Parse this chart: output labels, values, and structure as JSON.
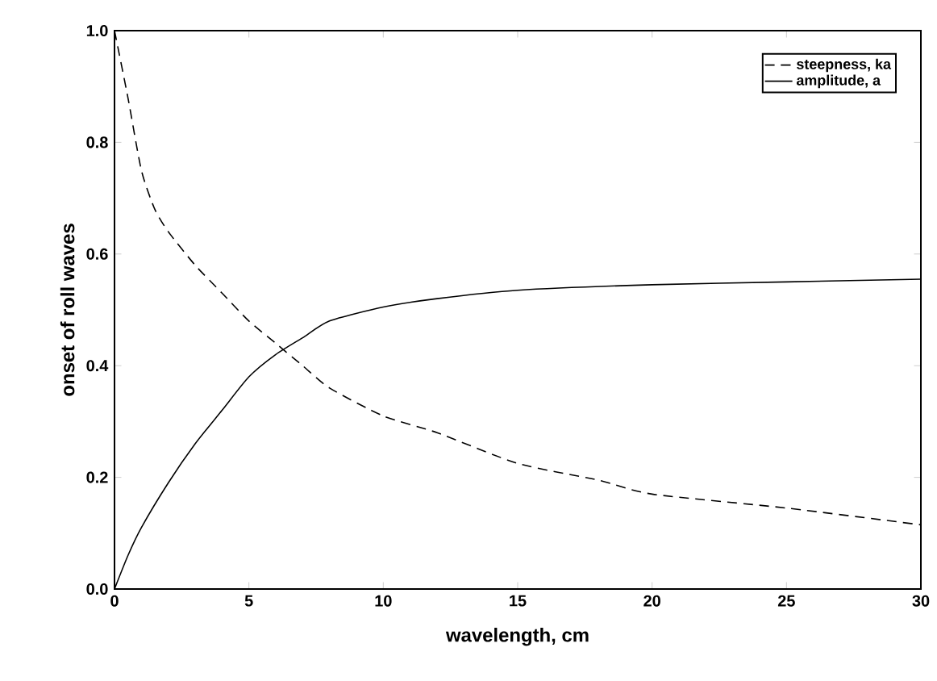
{
  "chart_data": {
    "type": "line",
    "xlabel": "wavelength, cm",
    "ylabel": "onset of roll waves",
    "xlim": [
      0,
      30
    ],
    "ylim": [
      0,
      1
    ],
    "xticks": [
      0,
      5,
      10,
      15,
      20,
      25,
      30
    ],
    "yticks": [
      {
        "value": 0,
        "label": "0.0"
      },
      {
        "value": 0.2,
        "label": "0.2"
      },
      {
        "value": 0.4,
        "label": "0.4"
      },
      {
        "value": 0.6,
        "label": "0.6"
      },
      {
        "value": 0.8,
        "label": "0.8"
      },
      {
        "value": 1,
        "label": "1.0"
      }
    ],
    "legend": "top right",
    "grid": false,
    "marker": "none",
    "series": [
      {
        "name": "steepness, ka",
        "color": "#000000",
        "line_style": "dashed",
        "x": [
          0,
          0.5,
          1,
          1.5,
          2,
          3,
          4,
          5,
          6,
          7,
          8,
          10,
          12,
          15,
          18,
          20,
          25,
          30
        ],
        "values": [
          1.0,
          0.88,
          0.75,
          0.68,
          0.64,
          0.58,
          0.53,
          0.48,
          0.44,
          0.4,
          0.36,
          0.31,
          0.28,
          0.225,
          0.195,
          0.17,
          0.145,
          0.115
        ]
      },
      {
        "name": "amplitude, a",
        "color": "#000000",
        "line_style": "solid",
        "x": [
          0,
          0.5,
          1,
          2,
          3,
          4,
          5,
          6,
          7,
          8,
          10,
          12,
          15,
          20,
          25,
          30
        ],
        "values": [
          0,
          0.06,
          0.11,
          0.19,
          0.26,
          0.32,
          0.38,
          0.42,
          0.45,
          0.48,
          0.505,
          0.52,
          0.535,
          0.545,
          0.55,
          0.555
        ]
      }
    ]
  }
}
